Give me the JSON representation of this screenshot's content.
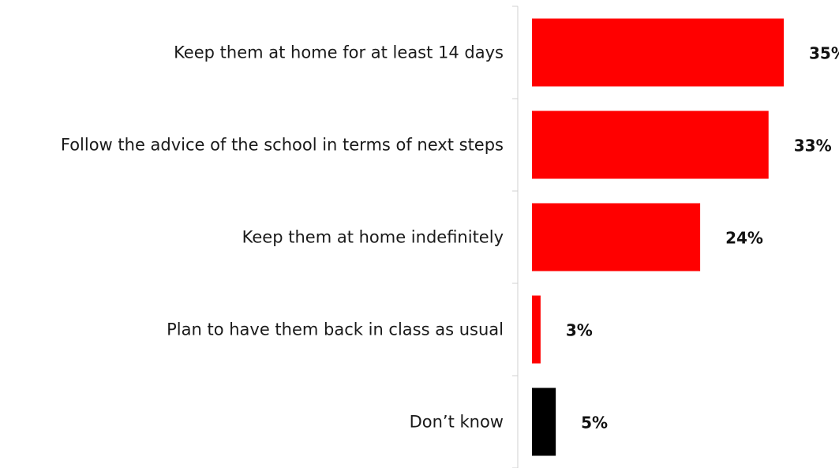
{
  "chart_data": {
    "type": "bar",
    "orientation": "horizontal",
    "title": "",
    "xlabel": "",
    "ylabel": "",
    "categories": [
      "Keep them at home for at least 14 days",
      "Follow the advice of the school in terms of next steps",
      "Keep them at home indefinitely",
      "Plan to have them back in class as usual",
      "Don’t know"
    ],
    "values": [
      35,
      33,
      24,
      3,
      5
    ],
    "value_labels": [
      "35%",
      "33%",
      "24%",
      "3%",
      "5%"
    ],
    "colors": [
      "#ff0000",
      "#ff0000",
      "#ff0000",
      "#ff0000",
      "#000000"
    ],
    "xlim": [
      0,
      40
    ],
    "grid": false,
    "legend": "none"
  }
}
